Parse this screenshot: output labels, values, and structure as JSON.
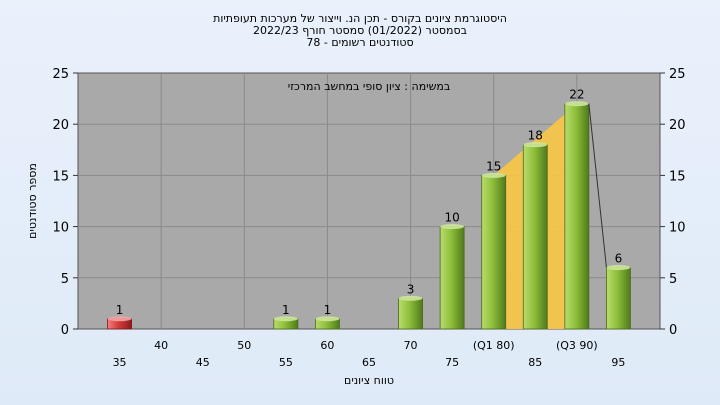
{
  "chart_data": {
    "type": "bar",
    "title_lines": [
      "היסטוגרמת ציונים בקורס - תכן הנ. וייצור של מערכות תעופתיות",
      "בסמסטר  (01/2022)  סמסטר חורף  2022/23",
      "סטודנטים רשומים - 78"
    ],
    "subtitle": "במשימה : ציון סופי במחשב המרכזי",
    "xlabel": "טווח ציונים",
    "ylabel": "מספר סטודנטים",
    "ylim": [
      0,
      25
    ],
    "yticks": [
      "0",
      "5",
      "10",
      "15",
      "20",
      "25"
    ],
    "x_tick_labels": [
      {
        "x": 35,
        "label": "35",
        "row": 1
      },
      {
        "x": 40,
        "label": "40",
        "row": 0
      },
      {
        "x": 45,
        "label": "45",
        "row": 1
      },
      {
        "x": 50,
        "label": "50",
        "row": 0
      },
      {
        "x": 55,
        "label": "55",
        "row": 1
      },
      {
        "x": 60,
        "label": "60",
        "row": 0
      },
      {
        "x": 65,
        "label": "65",
        "row": 1
      },
      {
        "x": 70,
        "label": "70",
        "row": 0
      },
      {
        "x": 75,
        "label": "75",
        "row": 1
      },
      {
        "x": 80,
        "label": "(Q1 80)",
        "row": 0
      },
      {
        "x": 85,
        "label": "85",
        "row": 1
      },
      {
        "x": 90,
        "label": "(Q3 90)",
        "row": 0
      },
      {
        "x": 95,
        "label": "95",
        "row": 1
      }
    ],
    "bars": [
      {
        "x": 35,
        "value": 1,
        "color": "red"
      },
      {
        "x": 55,
        "value": 1,
        "color": "green"
      },
      {
        "x": 60,
        "value": 1,
        "color": "green"
      },
      {
        "x": 70,
        "value": 3,
        "color": "green"
      },
      {
        "x": 75,
        "value": 10,
        "color": "green"
      },
      {
        "x": 80,
        "value": 15,
        "color": "green"
      },
      {
        "x": 85,
        "value": 18,
        "color": "green"
      },
      {
        "x": 90,
        "value": 22,
        "color": "green"
      },
      {
        "x": 95,
        "value": 6,
        "color": "green"
      }
    ],
    "quartile_band": {
      "from": 80,
      "to": 90
    },
    "grid": true,
    "colors": {
      "plot_bg": "#a9a9a9",
      "grid": "#8a8a8a",
      "bar_green": "#8fbf3a",
      "bar_red": "#d63a3a",
      "band": "#f7c744"
    }
  }
}
